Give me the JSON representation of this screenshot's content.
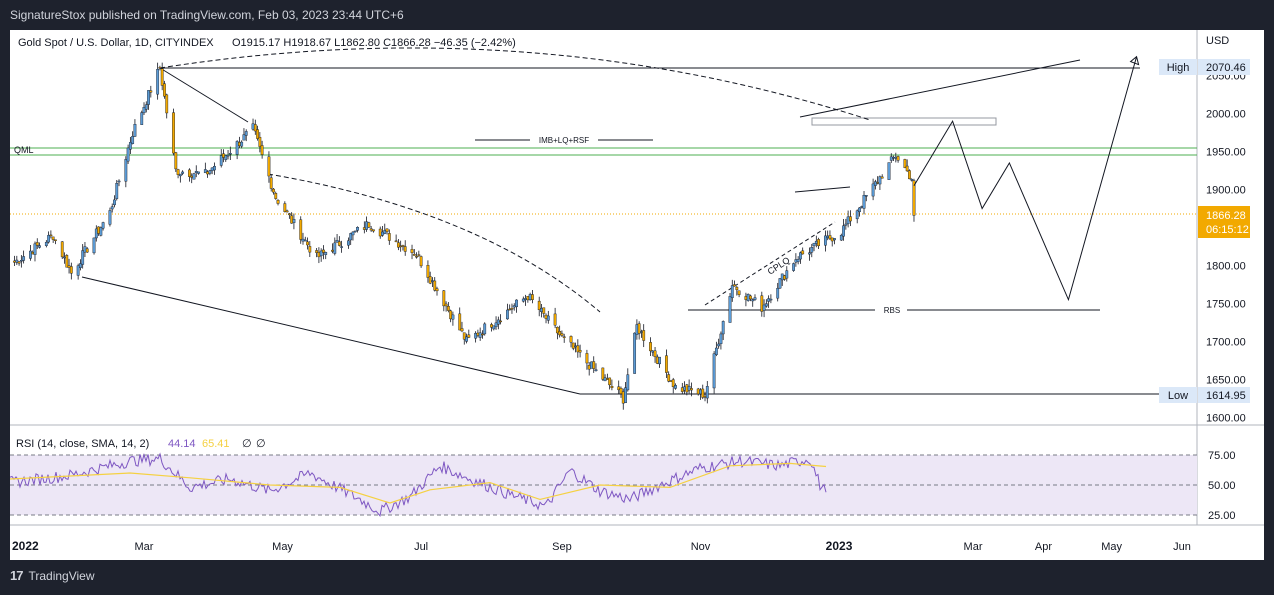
{
  "header": {
    "published": "SignatureStox published on TradingView.com, Feb 03, 2023 23:44 UTC+6"
  },
  "footer": {
    "brand_glyph": "17",
    "brand": "TradingView"
  },
  "symbol": {
    "title": "Gold Spot / U.S. Dollar, 1D, CITYINDEX",
    "ohlc": "O1915.17  H1918.67  L1862.80  C1866.28  −46.35 (−2.42%)"
  },
  "currency": "USD",
  "colors": {
    "up": "#26a69a",
    "down": "#ef5350",
    "upbody": "#5b9bd5",
    "downbody": "#f2a900",
    "rsi": "#7e57c2",
    "sma": "#f5d142",
    "zone": "#4caf50"
  },
  "price_axis": {
    "ticks": [
      "2050.00",
      "2000.00",
      "1950.00",
      "1900.00",
      "1850.00",
      "1800.00",
      "1750.00",
      "1700.00",
      "1650.00",
      "1600.00"
    ],
    "high_label": "High",
    "high_value": "2070.46",
    "low_label": "Low",
    "low_value": "1614.95",
    "last_price": "1866.28",
    "countdown": "06:15:12"
  },
  "time_axis": [
    "2022",
    "Mar",
    "May",
    "Jul",
    "Sep",
    "Nov",
    "2023",
    "Mar",
    "Apr",
    "May",
    "Jun"
  ],
  "annotations": {
    "qml": "QML",
    "imb": "IMB+LQ+RSF",
    "cplq": "CPLQ",
    "rbs": "RBS"
  },
  "rsi": {
    "label": "RSI (14, close, SMA, 14, 2)",
    "rsi_value": "44.14",
    "sma_value": "65.41",
    "extra1": "∅",
    "extra2": "∅",
    "ticks": [
      "75.00",
      "50.00",
      "25.00"
    ]
  },
  "chart_data": {
    "type": "candlestick",
    "symbol": "Gold Spot / U.S. Dollar",
    "timeframe": "1D",
    "ylim": [
      1590,
      2110
    ],
    "levels": {
      "high": 2070.46,
      "low": 1614.95,
      "last": 1866.28,
      "qml_top": 1958,
      "qml_bottom": 1949,
      "rbs": 1733
    },
    "close_path_points": [
      [
        "2022-01-01",
        1800
      ],
      [
        "2022-01-20",
        1840
      ],
      [
        "2022-01-28",
        1790
      ],
      [
        "2022-02-14",
        1870
      ],
      [
        "2022-02-24",
        1975
      ],
      [
        "2022-03-08",
        2060
      ],
      [
        "2022-03-15",
        1925
      ],
      [
        "2022-03-28",
        1920
      ],
      [
        "2022-04-18",
        1980
      ],
      [
        "2022-04-28",
        1890
      ],
      [
        "2022-05-16",
        1810
      ],
      [
        "2022-06-08",
        1855
      ],
      [
        "2022-06-29",
        1815
      ],
      [
        "2022-07-21",
        1700
      ],
      [
        "2022-08-17",
        1760
      ],
      [
        "2022-09-01",
        1705
      ],
      [
        "2022-09-28",
        1625
      ],
      [
        "2022-10-04",
        1720
      ],
      [
        "2022-10-21",
        1640
      ],
      [
        "2022-11-03",
        1630
      ],
      [
        "2022-11-15",
        1775
      ],
      [
        "2022-11-28",
        1745
      ],
      [
        "2022-12-13",
        1810
      ],
      [
        "2023-01-02",
        1845
      ],
      [
        "2023-01-26",
        1945
      ],
      [
        "2023-02-02",
        1915
      ],
      [
        "2023-02-03",
        1866
      ]
    ],
    "projection_points": [
      [
        "2023-02-03",
        1905
      ],
      [
        "2023-02-20",
        1990
      ],
      [
        "2023-03-05",
        1875
      ],
      [
        "2023-03-17",
        1935
      ],
      [
        "2023-04-12",
        1755
      ],
      [
        "2023-05-12",
        2075
      ]
    ],
    "rsi_series": {
      "ylim": [
        20,
        80
      ],
      "rsi": [
        [
          0,
          52
        ],
        [
          30,
          58
        ],
        [
          60,
          70
        ],
        [
          75,
          72
        ],
        [
          90,
          48
        ],
        [
          110,
          55
        ],
        [
          130,
          45
        ],
        [
          150,
          60
        ],
        [
          175,
          38
        ],
        [
          185,
          28
        ],
        [
          200,
          40
        ],
        [
          215,
          66
        ],
        [
          230,
          55
        ],
        [
          250,
          42
        ],
        [
          268,
          32
        ],
        [
          280,
          62
        ],
        [
          295,
          45
        ],
        [
          310,
          38
        ],
        [
          325,
          50
        ],
        [
          345,
          64
        ],
        [
          365,
          70
        ],
        [
          385,
          66
        ],
        [
          400,
          72
        ],
        [
          405,
          50
        ],
        [
          408,
          44
        ]
      ],
      "sma": [
        [
          0,
          55
        ],
        [
          60,
          60
        ],
        [
          90,
          56
        ],
        [
          130,
          50
        ],
        [
          165,
          48
        ],
        [
          190,
          35
        ],
        [
          210,
          46
        ],
        [
          240,
          52
        ],
        [
          265,
          38
        ],
        [
          295,
          50
        ],
        [
          330,
          48
        ],
        [
          360,
          66
        ],
        [
          390,
          68
        ],
        [
          408,
          65.41
        ]
      ]
    }
  }
}
